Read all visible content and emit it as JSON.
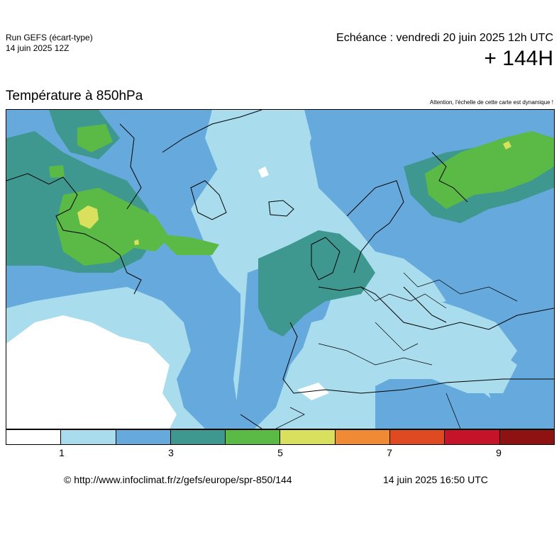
{
  "header": {
    "run_title": "Run GEFS (écart-type)",
    "run_date": "14 juin 2025 12Z",
    "echeance": "Echéance : vendredi 20 juin 2025 12h UTC",
    "lead_time": "+ 144H"
  },
  "map": {
    "parameter": "Température à 850hPa",
    "warning": "Attention, l'échelle de cette carte est dynamique !",
    "region": "europe",
    "colors": {
      "lt1": "#ffffff",
      "c1": "#a9dcec",
      "c2": "#66aadd",
      "c3": "#3f9890",
      "c4": "#5bb946",
      "c5": "#d9e05e",
      "c6": "#f08a34",
      "c7": "#df4a23",
      "c8": "#c5142a",
      "c9": "#8e1212",
      "coast": "#000000"
    }
  },
  "scale": {
    "bins": [
      "#ffffff",
      "#a9dcec",
      "#66aadd",
      "#3f9890",
      "#5bb946",
      "#d9e05e",
      "#f08a34",
      "#df4a23",
      "#c5142a",
      "#8e1212"
    ],
    "labels": [
      "1",
      "3",
      "5",
      "7",
      "9"
    ]
  },
  "footer": {
    "credit": "© http://www.infoclimat.fr/z/gefs/europe/spr-850/144",
    "timestamp": "14 juin 2025 16:50 UTC"
  }
}
